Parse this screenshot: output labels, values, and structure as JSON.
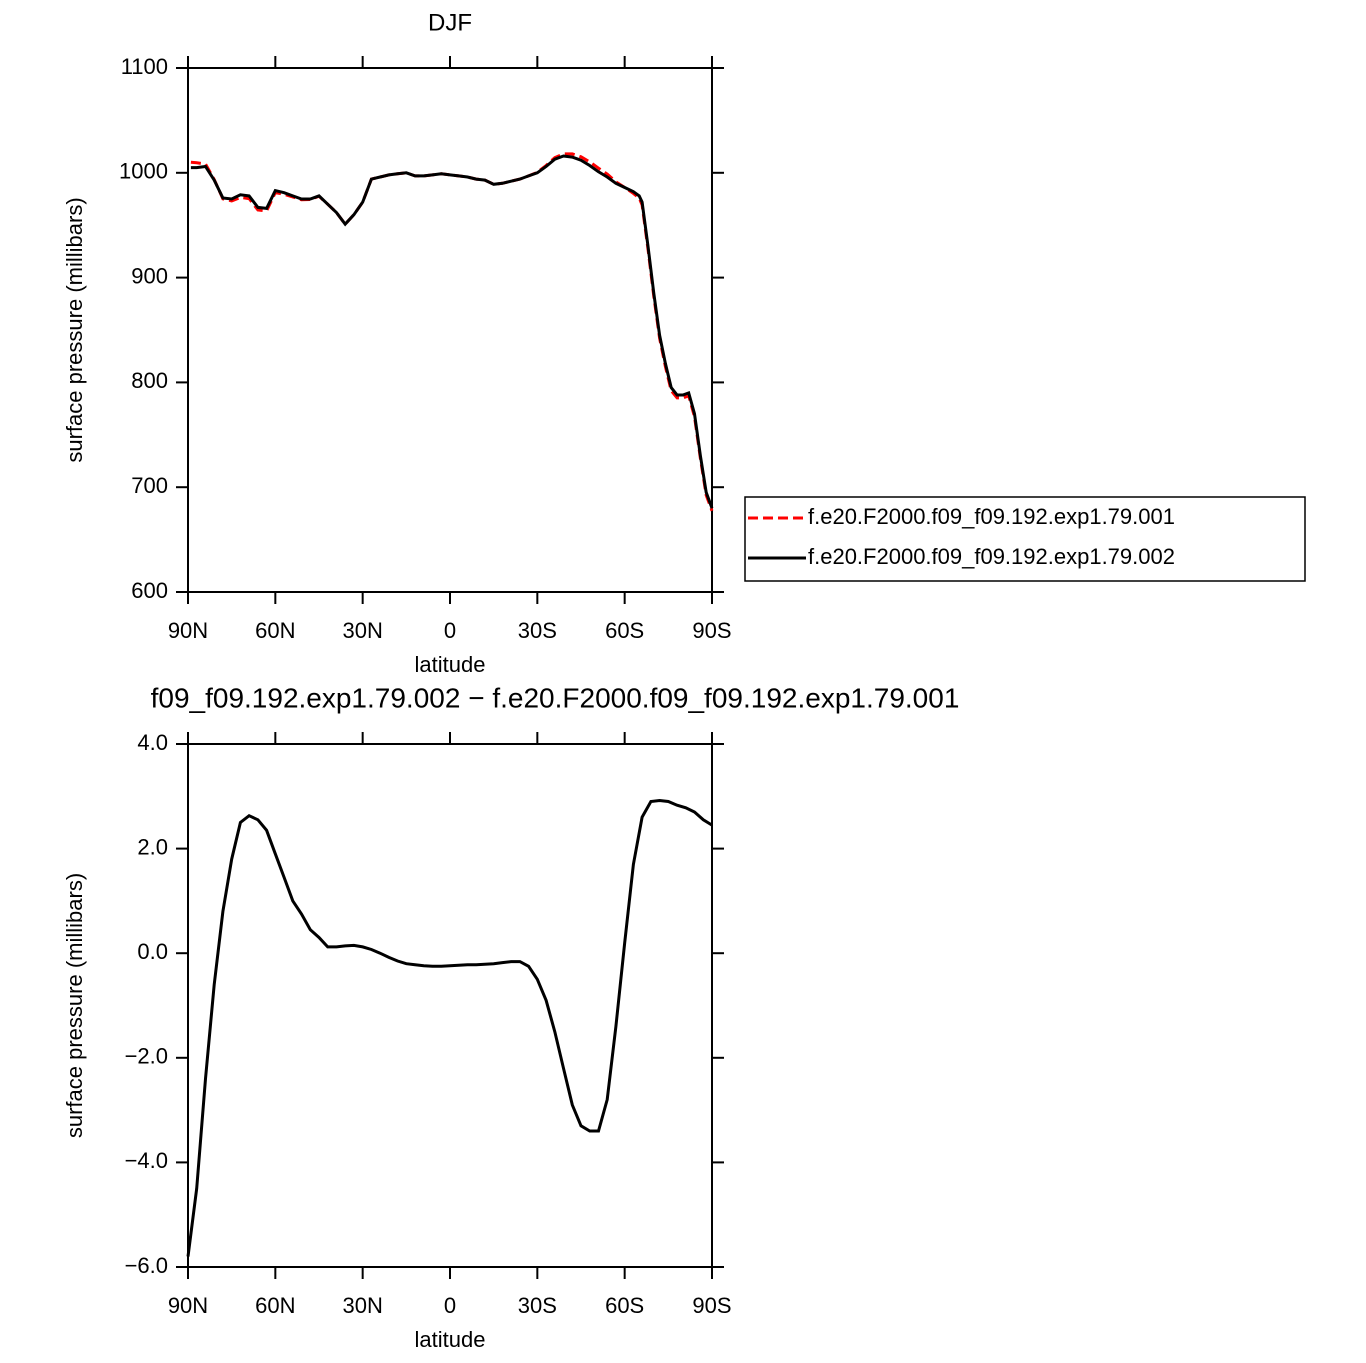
{
  "chart_data": [
    {
      "type": "line",
      "title": "DJF",
      "xlabel": "latitude",
      "ylabel": "surface pressure (millibars)",
      "x": [
        89,
        87,
        84,
        81,
        78,
        75,
        72,
        69,
        66,
        63,
        60,
        57,
        54,
        51,
        48,
        45,
        42,
        39,
        36,
        33,
        30,
        27,
        24,
        21,
        18,
        15,
        12,
        9,
        6,
        3,
        0,
        -3,
        -6,
        -9,
        -12,
        -15,
        -18,
        -21,
        -24,
        -27,
        -30,
        -33,
        -36,
        -39,
        -42,
        -45,
        -48,
        -51,
        -54,
        -57,
        -60,
        -63,
        -65,
        -66,
        -68,
        -70,
        -72,
        -74,
        -76,
        -78,
        -80,
        -82,
        -84,
        -86,
        -88,
        -90
      ],
      "xlim": [
        90,
        -90
      ],
      "xticks": [
        {
          "value": 90,
          "label": "90N"
        },
        {
          "value": 60,
          "label": "60N"
        },
        {
          "value": 30,
          "label": "30N"
        },
        0,
        {
          "value": -30,
          "label": "30S"
        },
        {
          "value": -60,
          "label": "60S"
        },
        {
          "value": -90,
          "label": "90S"
        }
      ],
      "ylim": [
        600,
        1100
      ],
      "yticks": [
        600,
        700,
        800,
        900,
        1000,
        1100
      ],
      "legend": "outside right",
      "series": [
        {
          "name": "f.e20.F2000.f09_f09.192.exp1.79.001",
          "color": "#ff0000",
          "linestyle": "dashed",
          "values": [
            1010,
            1009.5,
            1008.4,
            993.6,
            975.2,
            973.2,
            976.5,
            975.4,
            964.5,
            963.6,
            981.1,
            979.5,
            977,
            974.2,
            974.5,
            977.7,
            970,
            962,
            951,
            960,
            972,
            994,
            996,
            998,
            999,
            1000,
            997,
            997,
            998,
            999,
            998,
            997,
            996,
            994,
            993,
            989,
            990,
            992,
            994,
            997,
            1000.5,
            1007,
            1014.5,
            1018,
            1018,
            1015.3,
            1010.4,
            1004.4,
            998.8,
            991.4,
            986,
            980.3,
            976,
            969.4,
            927.2,
            882.1,
            842.1,
            815.1,
            792.1,
            785.2,
            785.2,
            787.2,
            767.3,
            727.4,
            692.5,
            677.5
          ]
        },
        {
          "name": "f.e20.F2000.f09_f09.192.exp1.79.002",
          "color": "#000000",
          "linestyle": "solid",
          "values": [
            1005,
            1005,
            1006,
            993,
            976,
            975,
            979,
            978,
            967,
            966,
            983,
            981,
            978,
            975,
            975,
            978,
            970,
            962,
            951,
            960,
            972,
            994,
            996,
            998,
            999,
            1000,
            997,
            997,
            998,
            999,
            998,
            997,
            996,
            994,
            993,
            989,
            990,
            992,
            994,
            997,
            1000,
            1006,
            1013,
            1016,
            1015,
            1012,
            1007,
            1001,
            996,
            990,
            986,
            982,
            978,
            972,
            930,
            885,
            845,
            818,
            795,
            788,
            788,
            790,
            770,
            730,
            695,
            680
          ]
        }
      ]
    },
    {
      "type": "line",
      "title": "f09_f09.192.exp1.79.002 − f.e20.F2000.f09_f09.192.exp1.79.001",
      "xlabel": "latitude",
      "ylabel": "surface pressure (millibars)",
      "x": [
        90,
        87,
        84,
        81,
        78,
        75,
        72,
        69,
        66,
        63,
        60,
        57,
        54,
        51,
        48,
        45,
        42,
        39,
        36,
        33,
        30,
        27,
        24,
        21,
        18,
        15,
        12,
        9,
        6,
        3,
        0,
        -3,
        -6,
        -9,
        -12,
        -15,
        -18,
        -21,
        -24,
        -27,
        -30,
        -33,
        -36,
        -39,
        -42,
        -45,
        -48,
        -51,
        -54,
        -57,
        -60,
        -63,
        -66,
        -69,
        -72,
        -75,
        -78,
        -81,
        -84,
        -87,
        -90
      ],
      "xlim": [
        90,
        -90
      ],
      "xticks": [
        {
          "value": 90,
          "label": "90N"
        },
        {
          "value": 60,
          "label": "60N"
        },
        {
          "value": 30,
          "label": "30N"
        },
        0,
        {
          "value": -30,
          "label": "30S"
        },
        {
          "value": -60,
          "label": "60S"
        },
        {
          "value": -90,
          "label": "90S"
        }
      ],
      "ylim": [
        -6,
        4
      ],
      "yticks": [
        {
          "value": -6,
          "label": "−6.0"
        },
        {
          "value": -4,
          "label": "−4.0"
        },
        {
          "value": -2,
          "label": "−2.0"
        },
        {
          "value": 0,
          "label": "0.0"
        },
        {
          "value": 2,
          "label": "2.0"
        },
        {
          "value": 4,
          "label": "4.0"
        }
      ],
      "series": [
        {
          "color": "#000000",
          "linestyle": "solid",
          "values": [
            -5.8,
            -4.5,
            -2.4,
            -0.6,
            0.8,
            1.8,
            2.5,
            2.63,
            2.55,
            2.35,
            1.9,
            1.45,
            1.0,
            0.75,
            0.45,
            0.3,
            0.12,
            0.12,
            0.14,
            0.15,
            0.12,
            0.07,
            0.0,
            -0.08,
            -0.15,
            -0.2,
            -0.22,
            -0.24,
            -0.25,
            -0.25,
            -0.24,
            -0.23,
            -0.22,
            -0.22,
            -0.21,
            -0.2,
            -0.18,
            -0.16,
            -0.16,
            -0.25,
            -0.5,
            -0.9,
            -1.5,
            -2.2,
            -2.9,
            -3.3,
            -3.4,
            -3.4,
            -2.8,
            -1.4,
            0.2,
            1.7,
            2.6,
            2.9,
            2.92,
            2.9,
            2.83,
            2.78,
            2.7,
            2.55,
            2.45
          ]
        }
      ]
    }
  ]
}
